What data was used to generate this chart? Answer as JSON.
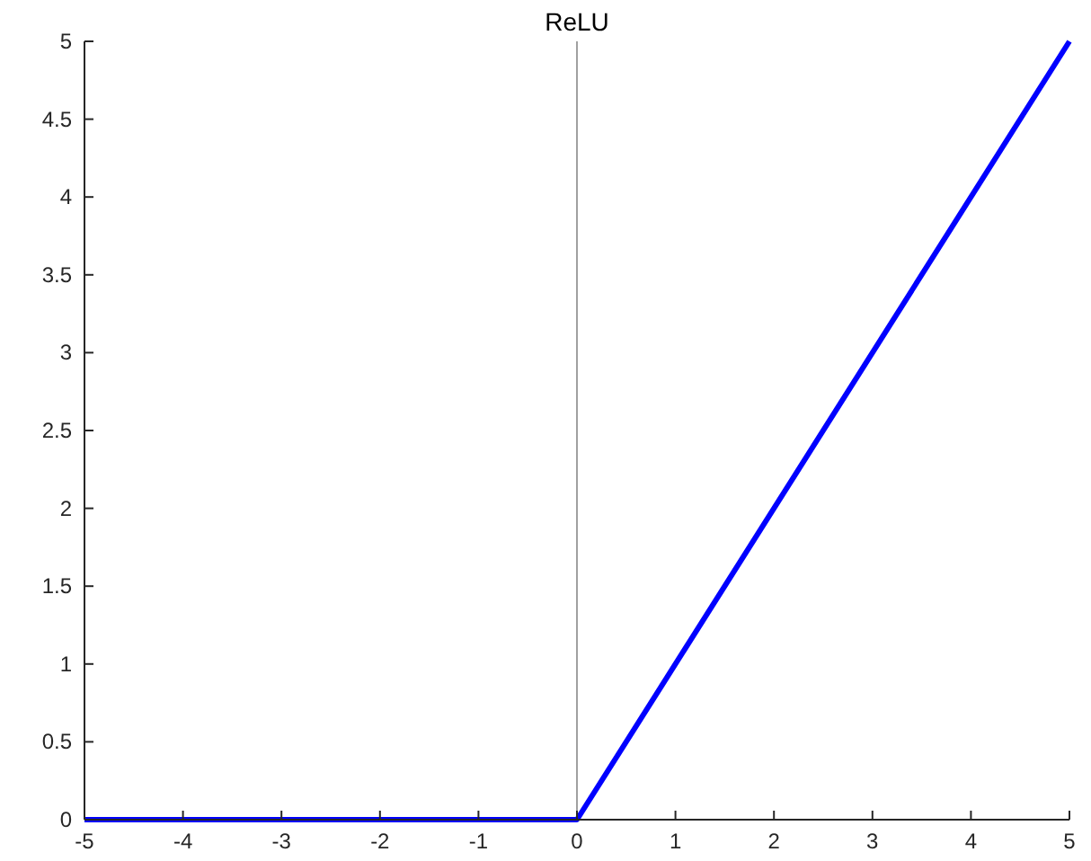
{
  "chart_data": {
    "type": "line",
    "title": "ReLU",
    "x": [
      -5,
      0,
      5
    ],
    "series": [
      {
        "color": "#0000ff",
        "values": [
          0,
          0,
          5
        ]
      }
    ],
    "xlim": [
      -5,
      5
    ],
    "xticks": [
      -5,
      -4,
      -3,
      -2,
      -1,
      0,
      1,
      2,
      3,
      4,
      5
    ],
    "ylim": [
      0,
      5
    ],
    "yticks": [
      0,
      0.5,
      1,
      1.5,
      2,
      2.5,
      3,
      3.5,
      4,
      4.5,
      5
    ],
    "ref_lines": [
      {
        "axis": "x",
        "value": 0,
        "color": "#a0a0a0"
      }
    ],
    "grid": false,
    "marker": "none",
    "line_style": "solid"
  }
}
